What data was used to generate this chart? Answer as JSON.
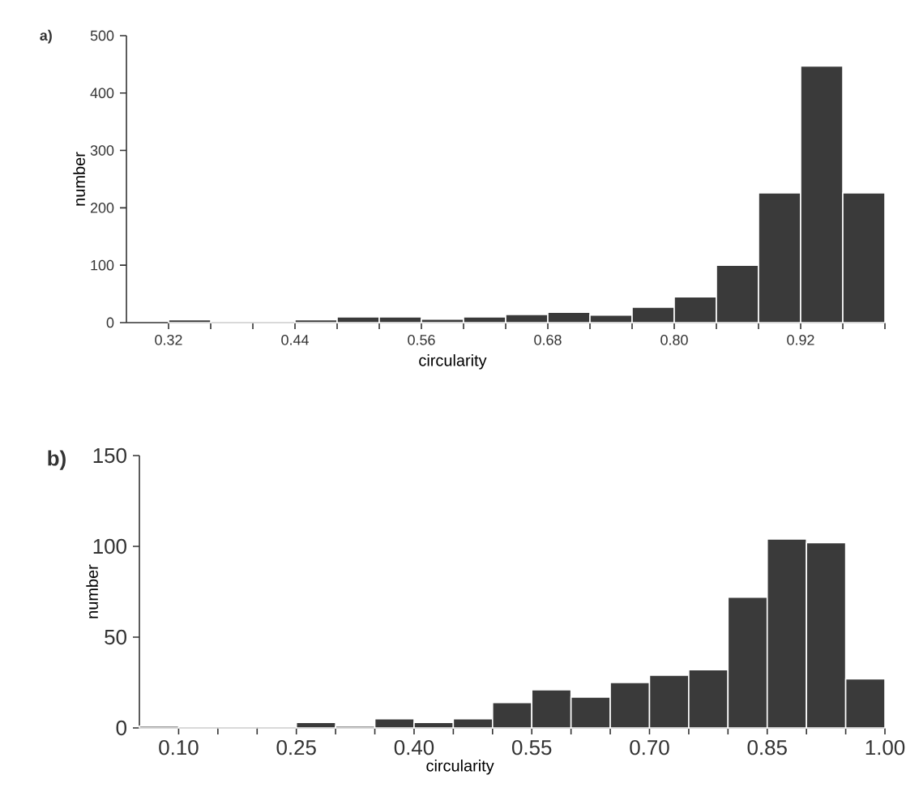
{
  "chart_data": [
    {
      "type": "histogram",
      "annotations": [
        "a)"
      ],
      "xlabel": "circularity",
      "ylabel": "number",
      "color": "#3a3a3a",
      "bins": [
        0.32,
        0.36,
        0.4,
        0.44,
        0.48,
        0.52,
        0.56,
        0.6,
        0.64,
        0.68,
        0.72,
        0.76,
        0.8,
        0.84,
        0.88,
        0.92,
        0.96,
        1.0
      ],
      "values": [
        5,
        0,
        0,
        5,
        10,
        10,
        6,
        10,
        14,
        18,
        13,
        27,
        45,
        100,
        226,
        447,
        226
      ],
      "xlim": [
        0.28,
        1.0
      ],
      "ylim": [
        0,
        500
      ],
      "yticks": [
        0,
        100,
        200,
        300,
        400,
        500
      ],
      "xticks": [
        {
          "value": 0.32,
          "label": "0.32"
        },
        {
          "value": 0.36,
          "label": null
        },
        {
          "value": 0.4,
          "label": null
        },
        {
          "value": 0.44,
          "label": "0.44"
        },
        {
          "value": 0.48,
          "label": null
        },
        {
          "value": 0.52,
          "label": null
        },
        {
          "value": 0.56,
          "label": "0.56"
        },
        {
          "value": 0.6,
          "label": null
        },
        {
          "value": 0.64,
          "label": null
        },
        {
          "value": 0.68,
          "label": "0.68"
        },
        {
          "value": 0.72,
          "label": null
        },
        {
          "value": 0.76,
          "label": null
        },
        {
          "value": 0.8,
          "label": "0.80"
        },
        {
          "value": 0.84,
          "label": null
        },
        {
          "value": 0.88,
          "label": null
        },
        {
          "value": 0.92,
          "label": "0.92"
        },
        {
          "value": 0.96,
          "label": null
        },
        {
          "value": 1.0,
          "label": null
        }
      ]
    },
    {
      "type": "histogram",
      "annotations": [
        "b)"
      ],
      "xlabel": "circularity",
      "ylabel": "number",
      "color": "#3a3a3a",
      "bins": [
        0.05,
        0.1,
        0.15,
        0.2,
        0.25,
        0.3,
        0.35,
        0.4,
        0.45,
        0.5,
        0.55,
        0.6,
        0.65,
        0.7,
        0.75,
        0.8,
        0.85,
        0.9,
        0.95,
        1.0
      ],
      "values": [
        1,
        0,
        0,
        0,
        3,
        1,
        5,
        3,
        5,
        14,
        21,
        17,
        25,
        29,
        32,
        72,
        104,
        102,
        27
      ],
      "xlim": [
        0.05,
        1.0
      ],
      "ylim": [
        0,
        150
      ],
      "yticks": [
        0,
        50,
        100,
        150
      ],
      "xticks": [
        {
          "value": 0.1,
          "label": "0.10"
        },
        {
          "value": 0.15,
          "label": null
        },
        {
          "value": 0.2,
          "label": null
        },
        {
          "value": 0.25,
          "label": "0.25"
        },
        {
          "value": 0.3,
          "label": null
        },
        {
          "value": 0.35,
          "label": null
        },
        {
          "value": 0.4,
          "label": "0.40"
        },
        {
          "value": 0.45,
          "label": null
        },
        {
          "value": 0.5,
          "label": null
        },
        {
          "value": 0.55,
          "label": "0.55"
        },
        {
          "value": 0.6,
          "label": null
        },
        {
          "value": 0.65,
          "label": null
        },
        {
          "value": 0.7,
          "label": "0.70"
        },
        {
          "value": 0.75,
          "label": null
        },
        {
          "value": 0.8,
          "label": null
        },
        {
          "value": 0.85,
          "label": "0.85"
        },
        {
          "value": 0.9,
          "label": null
        },
        {
          "value": 0.95,
          "label": null
        },
        {
          "value": 1.0,
          "label": "1.00"
        }
      ]
    }
  ]
}
